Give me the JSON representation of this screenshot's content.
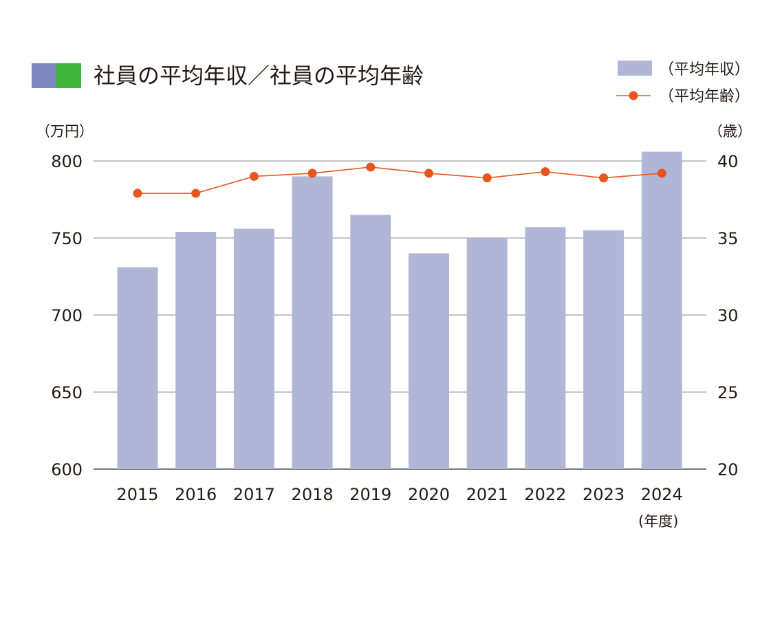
{
  "chart_data": {
    "type": "bar",
    "title": "社員の平均年収／社員の平均年齢",
    "title_marker_colors": [
      "#7b86bf",
      "#3fb53a"
    ],
    "categories": [
      "2015",
      "2016",
      "2017",
      "2018",
      "2019",
      "2020",
      "2021",
      "2022",
      "2023",
      "2024"
    ],
    "x_unit": "(年度)",
    "series": [
      {
        "name": "（平均年収）",
        "type": "bar",
        "axis": "left",
        "color": "#b0b7d6",
        "values": [
          731,
          754,
          756,
          790,
          765,
          740,
          750,
          757,
          755,
          806
        ]
      },
      {
        "name": "（平均年齢）",
        "type": "line",
        "axis": "right",
        "color": "#e8551e",
        "values": [
          37.9,
          37.9,
          39.0,
          39.2,
          39.6,
          39.2,
          38.9,
          39.3,
          38.9,
          39.2
        ]
      }
    ],
    "y_left": {
      "unit": "（万円）",
      "ylim": [
        600,
        800
      ],
      "ticks": [
        "600",
        "650",
        "700",
        "750",
        "800"
      ]
    },
    "y_right": {
      "unit": "（歳）",
      "ylim": [
        20,
        40
      ],
      "ticks": [
        "20",
        "25",
        "30",
        "35",
        "40"
      ]
    },
    "grid": true,
    "legend_position": "top-right"
  }
}
